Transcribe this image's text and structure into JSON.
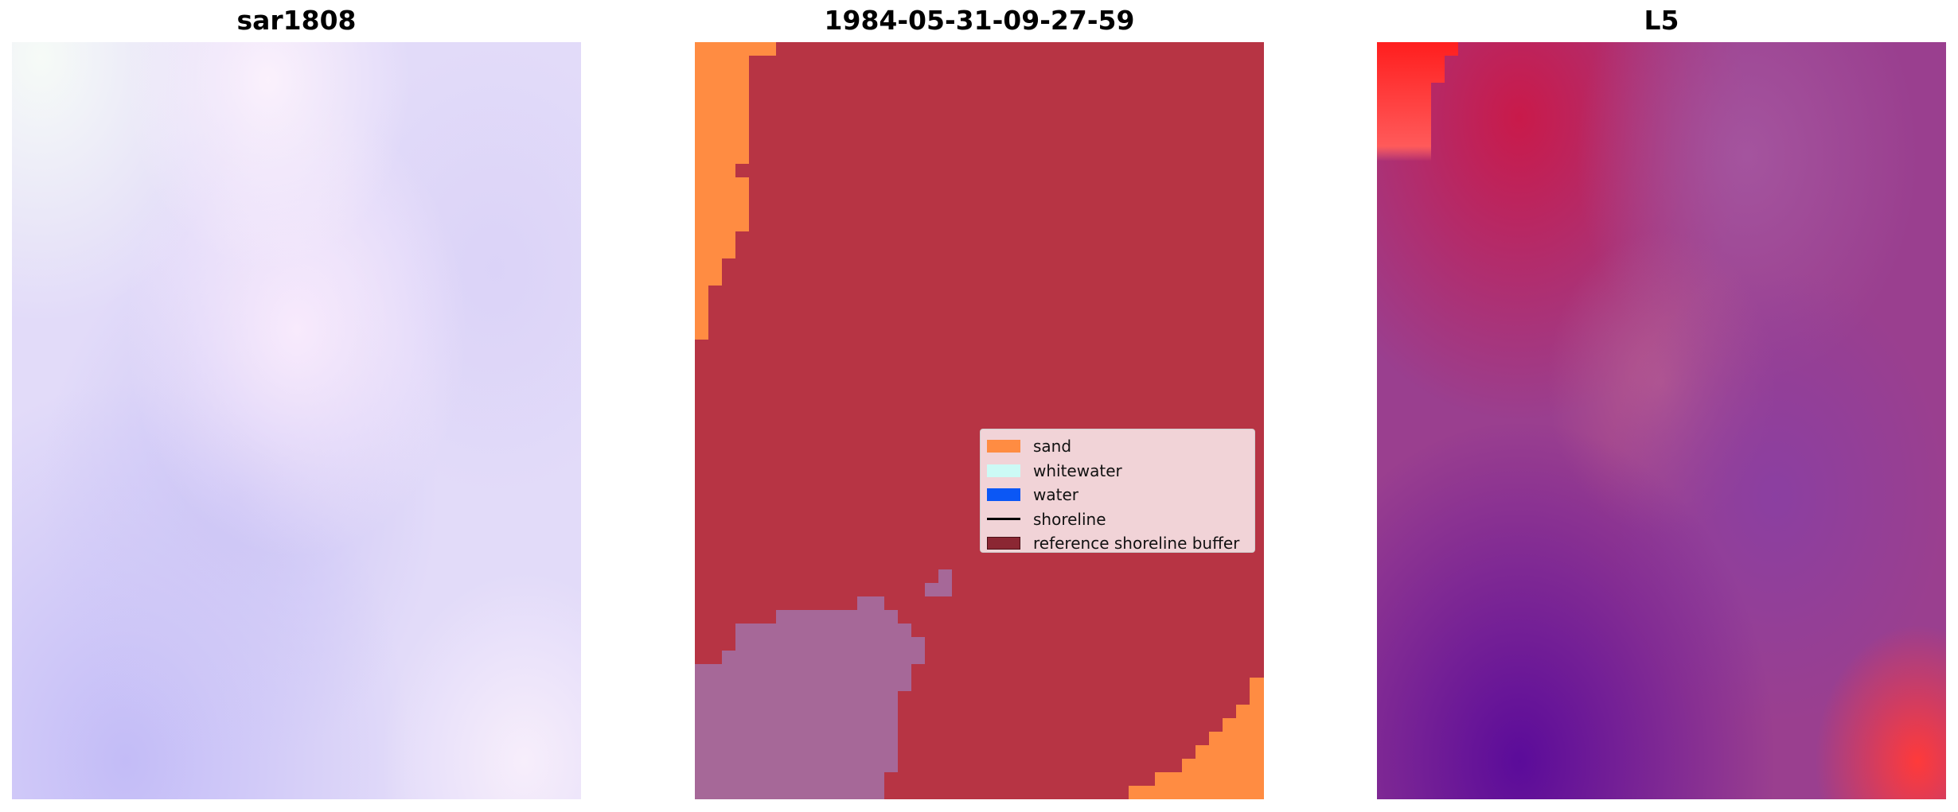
{
  "panels": [
    {
      "title": "sar1808"
    },
    {
      "title": "1984-05-31-09-27-59"
    },
    {
      "title": "L5"
    }
  ],
  "legend": {
    "items": [
      {
        "label": "sand",
        "color": "#ff8c42",
        "kind": "patch"
      },
      {
        "label": "whitewater",
        "color": "#ccfaf5",
        "kind": "patch"
      },
      {
        "label": "water",
        "color": "#0b57f5",
        "kind": "patch"
      },
      {
        "label": "shoreline",
        "color": "#000000",
        "kind": "line"
      },
      {
        "label": "reference shoreline buffer",
        "color": "#8b2733",
        "kind": "patch"
      }
    ]
  },
  "colors": {
    "buffer_red": "#b73444",
    "sand_orange": "#ff8c42",
    "mauve": "#a66898",
    "sar_lavender": "#d9d2f8"
  }
}
